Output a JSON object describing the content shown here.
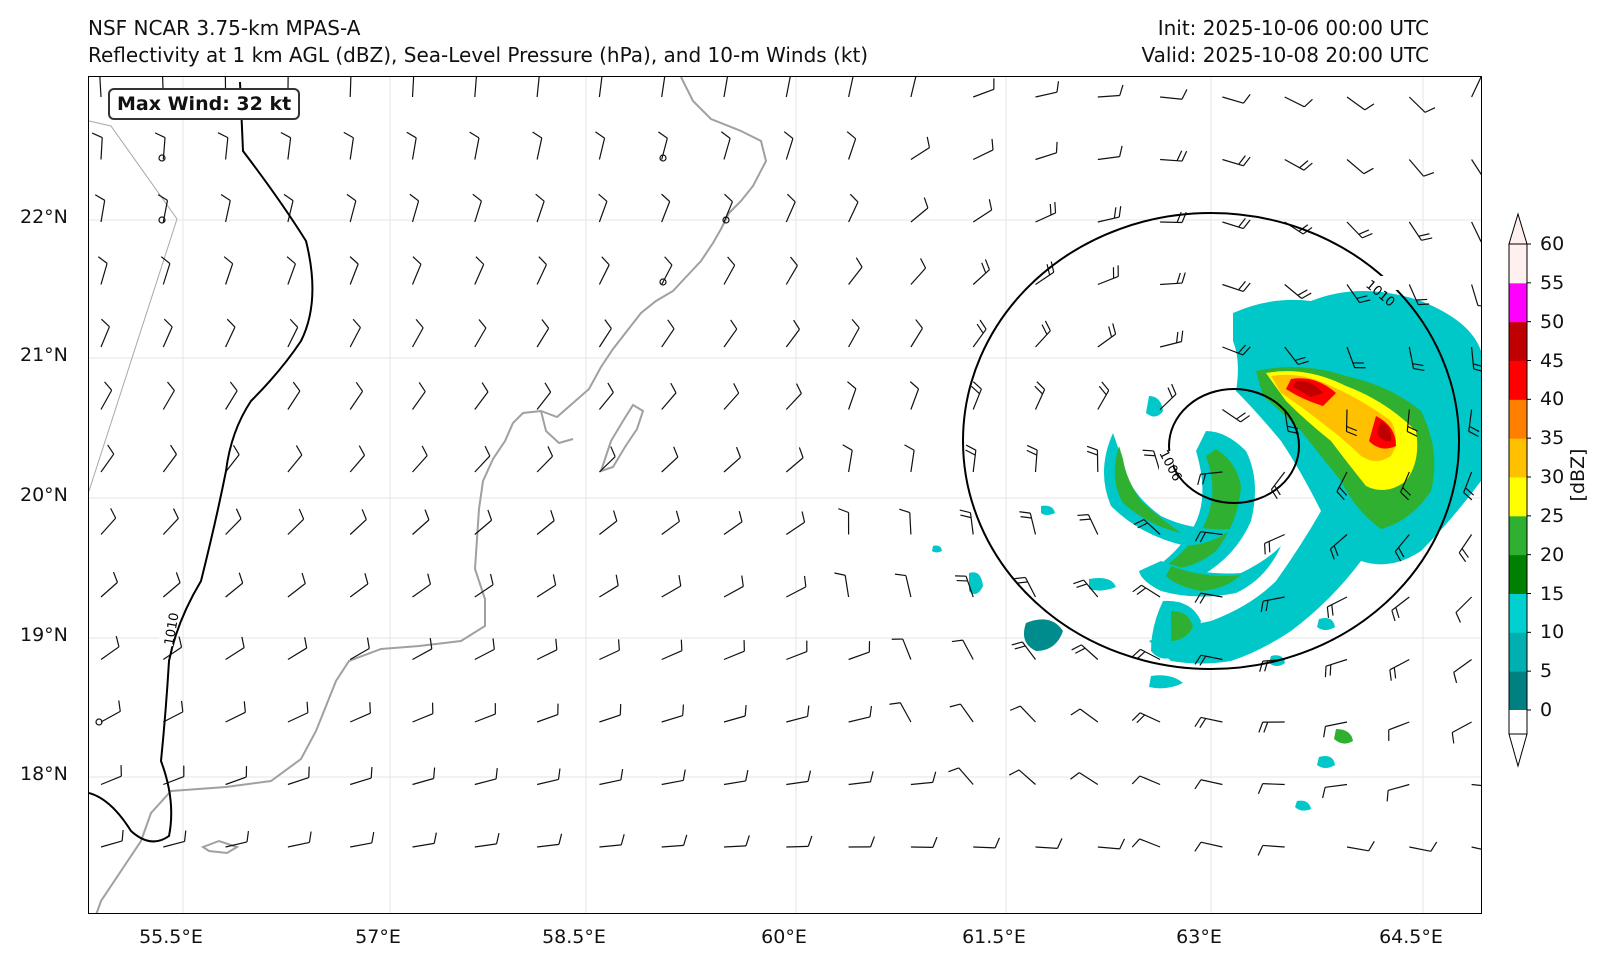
{
  "header": {
    "model": "NSF NCAR 3.75-km MPAS-A",
    "subtitle": "Reflectivity at 1 km AGL (dBZ), Sea-Level Pressure (hPa), and 10-m Winds (kt)",
    "init": "Init: 2025-10-06 00:00 UTC",
    "valid": "Valid: 2025-10-08 20:00 UTC"
  },
  "annotation": {
    "max_wind": "Max Wind: 32 kt"
  },
  "axes": {
    "x_ticks": [
      {
        "label": "55.5°E",
        "lon": 55.5
      },
      {
        "label": "57°E",
        "lon": 57.0
      },
      {
        "label": "58.5°E",
        "lon": 58.5
      },
      {
        "label": "60°E",
        "lon": 60.0
      },
      {
        "label": "61.5°E",
        "lon": 61.5
      },
      {
        "label": "63°E",
        "lon": 63.0
      },
      {
        "label": "64.5°E",
        "lon": 64.5
      }
    ],
    "y_ticks": [
      {
        "label": "22°N",
        "lat": 22
      },
      {
        "label": "21°N",
        "lat": 21
      },
      {
        "label": "20°N",
        "lat": 20
      },
      {
        "label": "19°N",
        "lat": 19
      },
      {
        "label": "18°N",
        "lat": 18
      }
    ],
    "lon_range": [
      55.0,
      65.0
    ],
    "lat_range": [
      17.0,
      23.0
    ],
    "grid": true
  },
  "colorbar": {
    "label": "[dBZ]",
    "ticks": [
      "0",
      "5",
      "10",
      "15",
      "20",
      "25",
      "30",
      "35",
      "40",
      "45",
      "50",
      "55",
      "60"
    ],
    "colors": [
      "#008080",
      "#00b0b0",
      "#00d0d0",
      "#008000",
      "#30b030",
      "#ffff00",
      "#ffc000",
      "#ff8000",
      "#ff0000",
      "#c00000",
      "#ff00ff",
      "#fff0f0"
    ],
    "extend": "both"
  },
  "map": {
    "coastline_color": "#a0a0a0",
    "isobar_labels": [
      "1010",
      "1006",
      "1010"
    ],
    "isobar_values_hpa": [
      1006,
      1010
    ],
    "storm_center": {
      "lon": 63.1,
      "lat": 20.4
    }
  }
}
